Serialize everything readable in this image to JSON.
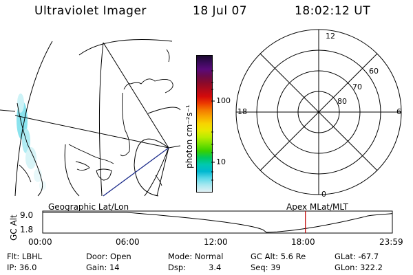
{
  "header": {
    "instrument": "Ultraviolet Imager",
    "date": "18 Jul 07",
    "time": "18:02:12 UT"
  },
  "colorbar": {
    "unit_label": "photon cm⁻²s⁻¹",
    "tick_labels": [
      "100",
      "10"
    ],
    "colors": [
      "#1a0a2e",
      "#3a0a5a",
      "#5a0a7a",
      "#6a0a4a",
      "#8a0a2a",
      "#b00a1a",
      "#d40a0a",
      "#ec3a00",
      "#f47a00",
      "#f8a800",
      "#f8d400",
      "#e8e800",
      "#b8ec00",
      "#78e000",
      "#38d000",
      "#00c860",
      "#00c8b0",
      "#00b8d0",
      "#5ad8e8",
      "#a8e8f0",
      "#e0f0f4"
    ]
  },
  "polar_plot": {
    "mlt_labels": {
      "top": "12",
      "left": "18",
      "right": "6",
      "bottom": "0"
    },
    "lat_labels": [
      "60",
      "70",
      "80"
    ]
  },
  "map": {
    "left_label": "Geographic Lat/Lon",
    "right_label": "Apex  MLat/MLT"
  },
  "altitude_plot": {
    "axis_title": "GC Alt",
    "y_labels": [
      "9.0",
      "1.8"
    ],
    "x_labels": [
      "00:00",
      "06:00",
      "12:00",
      "18:00",
      "23:59"
    ],
    "marker_time": "18:02"
  },
  "info": {
    "filter": "Flt: LBHL",
    "ip": "IP: 36.0",
    "door": "Door: Open",
    "gain": "Gain: 14",
    "mode": "Mode: Normal",
    "dsp_label": "Dsp:",
    "dsp_value": "3.4",
    "gc_alt": "GC Alt: 5.6 Re",
    "seq": "Seq: 39",
    "glat": "GLat: -67.7",
    "glon": "GLon: 322.2"
  },
  "colors": {
    "marker": "#c00000",
    "track": "#1a2a8a",
    "aurora": "#5ad8e8"
  }
}
